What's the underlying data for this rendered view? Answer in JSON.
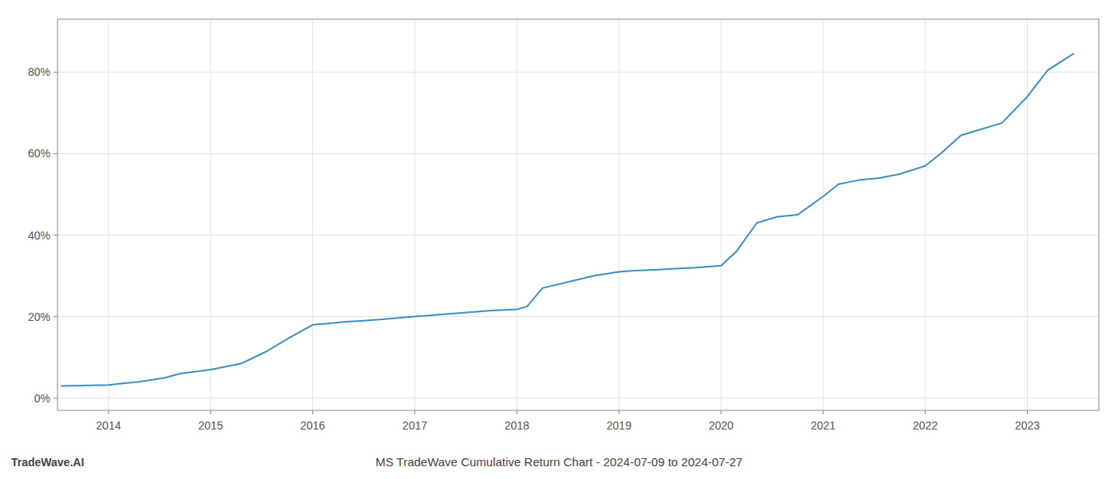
{
  "chart_data": {
    "type": "line",
    "title": "MS TradeWave Cumulative Return Chart - 2024-07-09 to 2024-07-27",
    "annotations": [
      "TradeWave.AI"
    ],
    "color": "#3a8fc4",
    "grid": true,
    "x": [
      2013.54,
      2014.0,
      2014.1,
      2014.3,
      2014.55,
      2014.7,
      2015.0,
      2015.1,
      2015.3,
      2015.55,
      2015.75,
      2016.0,
      2016.15,
      2016.3,
      2016.5,
      2016.75,
      2017.0,
      2017.25,
      2017.5,
      2017.75,
      2018.0,
      2018.1,
      2018.25,
      2018.5,
      2018.75,
      2019.0,
      2019.15,
      2019.35,
      2019.55,
      2019.75,
      2020.0,
      2020.15,
      2020.35,
      2020.55,
      2020.75,
      2021.0,
      2021.15,
      2021.35,
      2021.55,
      2021.75,
      2022.0,
      2022.15,
      2022.35,
      2022.55,
      2022.75,
      2023.0,
      2023.2,
      2023.45
    ],
    "values": [
      3.0,
      3.2,
      3.5,
      4.0,
      5.0,
      6.0,
      7.0,
      7.5,
      8.5,
      11.5,
      14.5,
      18.0,
      18.3,
      18.7,
      19.0,
      19.5,
      20.0,
      20.5,
      21.0,
      21.5,
      21.8,
      22.5,
      27.0,
      28.5,
      30.0,
      31.0,
      31.3,
      31.5,
      31.8,
      32.0,
      32.5,
      36.0,
      43.0,
      44.5,
      45.0,
      49.5,
      52.5,
      53.5,
      54.0,
      55.0,
      57.0,
      60.0,
      64.5,
      66.0,
      67.5,
      74.0,
      80.5,
      84.5
    ],
    "xlim": [
      2013.5,
      2023.7
    ],
    "xticks": [
      2014,
      2015,
      2016,
      2017,
      2018,
      2019,
      2020,
      2021,
      2022,
      2023
    ],
    "ylim": [
      -3,
      93
    ],
    "yticks": [
      {
        "value": 0,
        "label": "0%"
      },
      {
        "value": 20,
        "label": "20%"
      },
      {
        "value": 40,
        "label": "40%"
      },
      {
        "value": 60,
        "label": "60%"
      },
      {
        "value": 80,
        "label": "80%"
      }
    ]
  }
}
